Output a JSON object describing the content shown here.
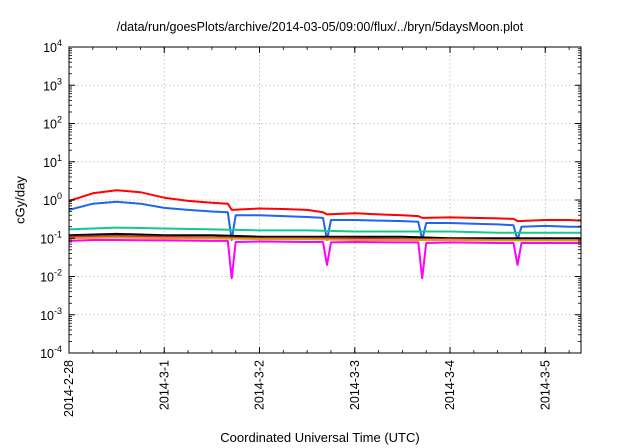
{
  "chart_data": {
    "type": "line",
    "title": "/data/run/goesPlots/archive/2014-03-05/09:00/flux/../bryn/5daysMoon.plot",
    "xlabel": "Coordinated Universal Time (UTC)",
    "ylabel": "cGy/day",
    "yscale": "log",
    "ylim": [
      0.0001,
      10000
    ],
    "y_ticks": [
      {
        "value": 0.0001,
        "base": "10",
        "exp": "-4"
      },
      {
        "value": 0.001,
        "base": "10",
        "exp": "-3"
      },
      {
        "value": 0.01,
        "base": "10",
        "exp": "-2"
      },
      {
        "value": 0.1,
        "base": "10",
        "exp": "-1"
      },
      {
        "value": 1,
        "base": "10",
        "exp": "0"
      },
      {
        "value": 10,
        "base": "10",
        "exp": "1"
      },
      {
        "value": 100,
        "base": "10",
        "exp": "2"
      },
      {
        "value": 1000,
        "base": "10",
        "exp": "3"
      },
      {
        "value": 10000,
        "base": "10",
        "exp": "4"
      }
    ],
    "xlim": [
      "2014-2-28",
      "2014-3-5 09:00"
    ],
    "x_ticks": [
      "2014-2-28",
      "2014-3-1",
      "2014-3-2",
      "2014-3-3",
      "2014-3-4",
      "2014-3-5"
    ],
    "grid": true,
    "series": [
      {
        "color": "#ff0000",
        "x": [
          "2014-2-28 00:00",
          "2014-2-28 06:00",
          "2014-2-28 12:00",
          "2014-2-28 18:00",
          "2014-3-1 00:00",
          "2014-3-1 06:00",
          "2014-3-1 12:00",
          "2014-3-1 16:00",
          "2014-3-1 17:00",
          "2014-3-2 00:00",
          "2014-3-2 06:00",
          "2014-3-2 12:00",
          "2014-3-2 16:00",
          "2014-3-2 17:00",
          "2014-3-3 00:00",
          "2014-3-3 06:00",
          "2014-3-3 12:00",
          "2014-3-3 16:00",
          "2014-3-3 17:00",
          "2014-3-4 00:00",
          "2014-3-4 06:00",
          "2014-3-4 12:00",
          "2014-3-4 16:00",
          "2014-3-4 17:00",
          "2014-3-5 00:00",
          "2014-3-5 06:00",
          "2014-3-5 09:00"
        ],
        "values": [
          0.95,
          1.5,
          1.8,
          1.6,
          1.15,
          0.95,
          0.85,
          0.8,
          0.55,
          0.6,
          0.58,
          0.55,
          0.48,
          0.42,
          0.45,
          0.42,
          0.4,
          0.38,
          0.34,
          0.35,
          0.34,
          0.33,
          0.32,
          0.28,
          0.3,
          0.3,
          0.29
        ]
      },
      {
        "color": "#1e64f0",
        "x": [
          "2014-2-28 00:00",
          "2014-2-28 06:00",
          "2014-2-28 12:00",
          "2014-2-28 18:00",
          "2014-3-1 00:00",
          "2014-3-1 06:00",
          "2014-3-1 12:00",
          "2014-3-1 16:00",
          "2014-3-1 17:00",
          "2014-3-1 18:00",
          "2014-3-2 00:00",
          "2014-3-2 06:00",
          "2014-3-2 12:00",
          "2014-3-2 16:00",
          "2014-3-2 17:00",
          "2014-3-2 18:00",
          "2014-3-3 00:00",
          "2014-3-3 06:00",
          "2014-3-3 12:00",
          "2014-3-3 16:00",
          "2014-3-3 17:00",
          "2014-3-3 18:00",
          "2014-3-4 00:00",
          "2014-3-4 06:00",
          "2014-3-4 12:00",
          "2014-3-4 16:00",
          "2014-3-4 17:00",
          "2014-3-4 18:00",
          "2014-3-5 00:00",
          "2014-3-5 06:00",
          "2014-3-5 09:00"
        ],
        "values": [
          0.55,
          0.8,
          0.9,
          0.8,
          0.62,
          0.55,
          0.5,
          0.48,
          0.09,
          0.4,
          0.4,
          0.38,
          0.36,
          0.34,
          0.09,
          0.3,
          0.3,
          0.29,
          0.28,
          0.27,
          0.09,
          0.25,
          0.25,
          0.24,
          0.23,
          0.22,
          0.09,
          0.2,
          0.21,
          0.2,
          0.2
        ]
      },
      {
        "color": "#14c88c",
        "x": [
          "2014-2-28 00:00",
          "2014-2-28 12:00",
          "2014-3-1 00:00",
          "2014-3-1 12:00",
          "2014-3-2 00:00",
          "2014-3-2 12:00",
          "2014-3-3 00:00",
          "2014-3-3 12:00",
          "2014-3-4 00:00",
          "2014-3-4 12:00",
          "2014-3-5 00:00",
          "2014-3-5 09:00"
        ],
        "values": [
          0.17,
          0.19,
          0.18,
          0.17,
          0.16,
          0.16,
          0.15,
          0.15,
          0.15,
          0.14,
          0.14,
          0.14
        ]
      },
      {
        "color": "#000000",
        "x": [
          "2014-2-28 00:00",
          "2014-2-28 12:00",
          "2014-3-1 00:00",
          "2014-3-1 12:00",
          "2014-3-2 00:00",
          "2014-3-2 12:00",
          "2014-3-3 00:00",
          "2014-3-3 12:00",
          "2014-3-4 00:00",
          "2014-3-4 12:00",
          "2014-3-5 00:00",
          "2014-3-5 09:00"
        ],
        "values": [
          0.12,
          0.13,
          0.12,
          0.12,
          0.11,
          0.11,
          0.11,
          0.11,
          0.1,
          0.1,
          0.1,
          0.1
        ]
      },
      {
        "color": "#c81e64",
        "x": [
          "2014-2-28 00:00",
          "2014-2-28 12:00",
          "2014-3-1 00:00",
          "2014-3-1 12:00",
          "2014-3-2 00:00",
          "2014-3-2 12:00",
          "2014-3-3 00:00",
          "2014-3-3 12:00",
          "2014-3-4 00:00",
          "2014-3-4 12:00",
          "2014-3-5 00:00",
          "2014-3-5 09:00"
        ],
        "values": [
          0.11,
          0.115,
          0.11,
          0.105,
          0.1,
          0.1,
          0.1,
          0.095,
          0.095,
          0.09,
          0.09,
          0.09
        ]
      },
      {
        "color": "#dca000",
        "x": [
          "2014-2-28 00:00",
          "2014-2-28 12:00",
          "2014-3-1 00:00",
          "2014-3-1 12:00",
          "2014-3-2 00:00",
          "2014-3-2 12:00",
          "2014-3-3 00:00",
          "2014-3-3 12:00",
          "2014-3-4 00:00",
          "2014-3-4 12:00",
          "2014-3-5 00:00",
          "2014-3-5 09:00"
        ],
        "values": [
          0.1,
          0.105,
          0.1,
          0.1,
          0.095,
          0.095,
          0.09,
          0.09,
          0.09,
          0.088,
          0.088,
          0.088
        ]
      },
      {
        "color": "#ff00ff",
        "x": [
          "2014-2-28 00:00",
          "2014-2-28 06:00",
          "2014-2-28 12:00",
          "2014-3-1 00:00",
          "2014-3-1 12:00",
          "2014-3-1 16:00",
          "2014-3-1 17:00",
          "2014-3-1 18:00",
          "2014-3-2 00:00",
          "2014-3-2 12:00",
          "2014-3-2 16:00",
          "2014-3-2 17:00",
          "2014-3-2 18:00",
          "2014-3-3 00:00",
          "2014-3-3 12:00",
          "2014-3-3 16:00",
          "2014-3-3 17:00",
          "2014-3-3 18:00",
          "2014-3-4 00:00",
          "2014-3-4 12:00",
          "2014-3-4 16:00",
          "2014-3-4 17:00",
          "2014-3-4 18:00",
          "2014-3-5 00:00",
          "2014-3-5 09:00"
        ],
        "values": [
          0.085,
          0.09,
          0.09,
          0.088,
          0.085,
          0.085,
          0.009,
          0.08,
          0.082,
          0.08,
          0.08,
          0.02,
          0.078,
          0.08,
          0.078,
          0.078,
          0.009,
          0.075,
          0.078,
          0.075,
          0.075,
          0.02,
          0.075,
          0.075,
          0.075
        ]
      }
    ]
  }
}
